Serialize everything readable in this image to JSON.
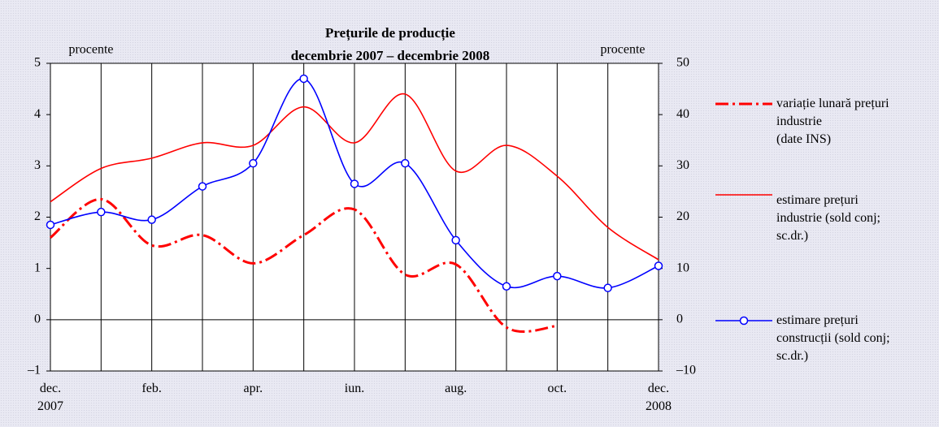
{
  "chart_data": {
    "type": "line",
    "title": "Prețurile de producție",
    "subtitle": "decembrie 2007 – decembrie 2008",
    "y_label": "procente",
    "y2_label": "procente",
    "categories": [
      "dec.\n2007",
      null,
      "feb.",
      null,
      "apr.",
      null,
      "iun.",
      null,
      "aug.",
      null,
      "oct.",
      null,
      "dec.\n2008"
    ],
    "ylim": [
      -1,
      5
    ],
    "yticks": [
      {
        "value": -1,
        "label": "–1"
      },
      0,
      1,
      2,
      3,
      4,
      5
    ],
    "y2lim": [
      -10,
      50
    ],
    "y2ticks": [
      {
        "value": -10,
        "label": "–10"
      },
      0,
      10,
      20,
      30,
      40,
      50
    ],
    "series": [
      {
        "name": "variație lunară prețuri\nindustrie\n(date INS)",
        "color": "#ff0000",
        "style": "dashdot",
        "values": [
          1.6,
          2.35,
          1.45,
          1.65,
          1.1,
          1.65,
          2.15,
          0.88,
          1.08,
          -0.15,
          -0.12,
          null,
          null
        ]
      },
      {
        "name": "estimare prețuri\nindustrie (sold conj;\nsc.dr.)",
        "color": "#ff0000",
        "style": "solid",
        "axis": "y2",
        "values": [
          23,
          29.5,
          31.5,
          34.5,
          34,
          41.5,
          34.5,
          44,
          29,
          34,
          28,
          18,
          11.7
        ]
      },
      {
        "name": "estimare prețuri\nconstrucții (sold conj;\nsc.dr.)",
        "color": "#0000ff",
        "style": "solid",
        "marker": "circle",
        "axis": "y2",
        "values": [
          18.5,
          21,
          19.5,
          26,
          30.5,
          47,
          26.5,
          30.5,
          15.5,
          6.5,
          8.5,
          6.2,
          10.5
        ]
      }
    ]
  }
}
